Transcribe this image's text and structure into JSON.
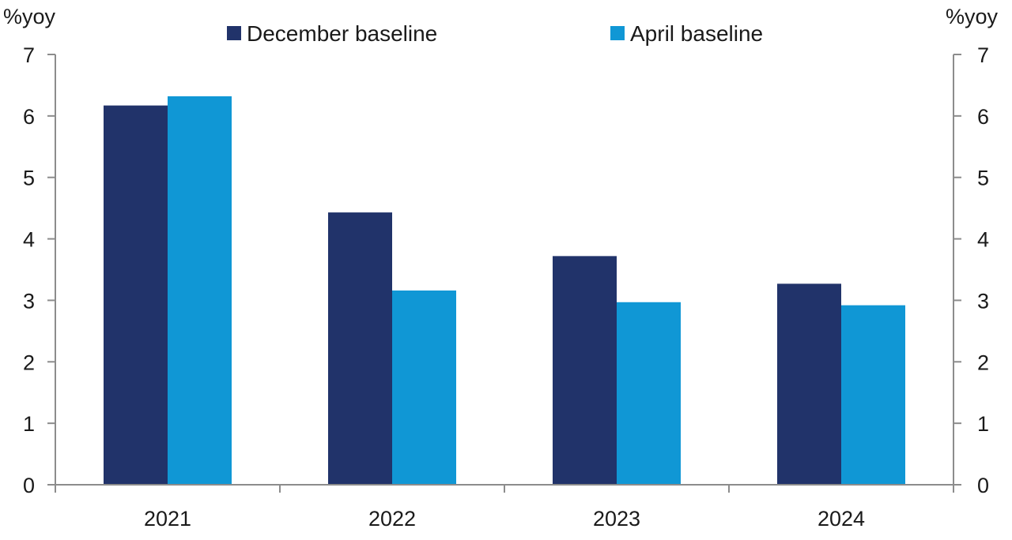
{
  "chart_data": {
    "type": "bar",
    "categories": [
      "2021",
      "2022",
      "2023",
      "2024"
    ],
    "series": [
      {
        "name": "December baseline",
        "color": "#21336a",
        "values": [
          6.17,
          4.43,
          3.72,
          3.27
        ]
      },
      {
        "name": "April baseline",
        "color": "#1097d5",
        "values": [
          6.32,
          3.16,
          2.97,
          2.92
        ]
      }
    ],
    "left_unit": "%yoy",
    "right_unit": "%yoy",
    "ylim": [
      0,
      7
    ],
    "yticks": [
      "0",
      "1",
      "2",
      "3",
      "4",
      "5",
      "6",
      "7"
    ],
    "legend_placement": "top-center",
    "grid": false
  }
}
